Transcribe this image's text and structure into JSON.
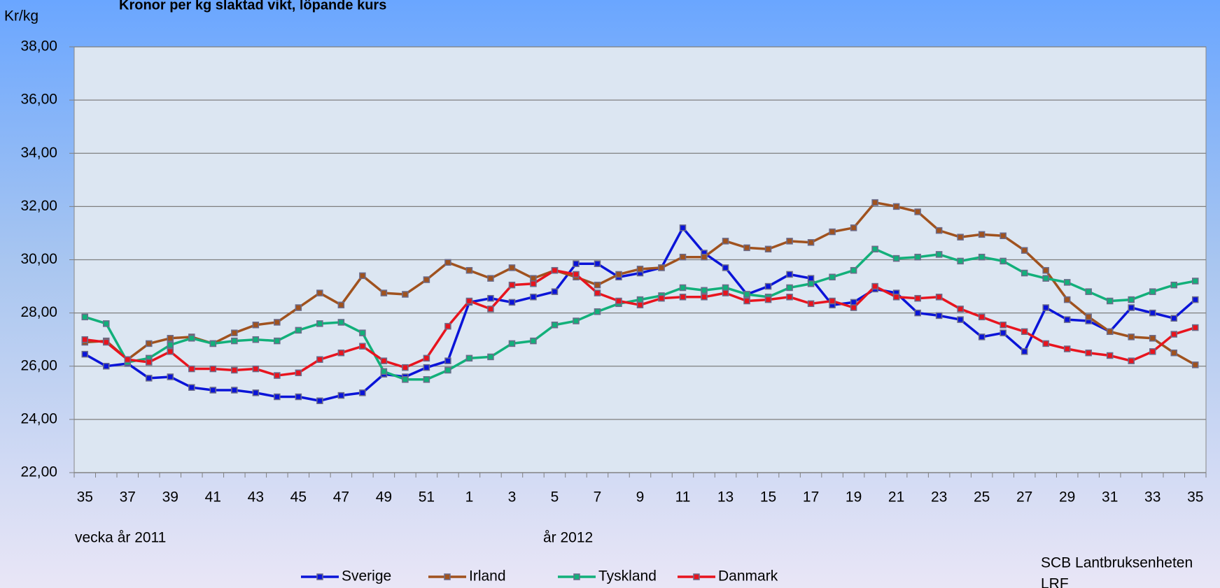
{
  "chart_data": {
    "type": "line",
    "title": "Kronor per kg  slaktad vikt,  löpande kurs",
    "y_label": "Kr/kg",
    "annotations": [
      "vecka  år 2011",
      "år 2012",
      "SCB  Lantbruksenheten",
      "LRF"
    ],
    "categories": [
      "35",
      null,
      "37",
      null,
      "39",
      null,
      "41",
      null,
      "43",
      null,
      "45",
      null,
      "47",
      null,
      "49",
      null,
      "51",
      null,
      "1",
      null,
      "3",
      null,
      "5",
      null,
      "7",
      null,
      "9",
      null,
      "11",
      null,
      "13",
      null,
      "15",
      null,
      "17",
      null,
      "19",
      null,
      "21",
      null,
      "23",
      null,
      "25",
      null,
      "27",
      null,
      "29",
      null,
      "31",
      null,
      "33",
      null,
      "35"
    ],
    "ylim": [
      22,
      38
    ],
    "yticks": [
      {
        "value": 22,
        "label": "22,00"
      },
      {
        "value": 24,
        "label": "24,00"
      },
      {
        "value": 26,
        "label": "26,00"
      },
      {
        "value": 28,
        "label": "28,00"
      },
      {
        "value": 30,
        "label": "30,00"
      },
      {
        "value": 32,
        "label": "32,00"
      },
      {
        "value": 34,
        "label": "34,00"
      },
      {
        "value": 36,
        "label": "36,00"
      },
      {
        "value": 38,
        "label": "38,00"
      }
    ],
    "grid": true,
    "legend": "bottom",
    "series": [
      {
        "name": "Sverige",
        "color": "#0a14d8",
        "values": [
          26.45,
          26.0,
          26.1,
          25.55,
          25.6,
          25.2,
          25.1,
          25.1,
          25.0,
          24.85,
          24.85,
          24.7,
          24.9,
          25.0,
          25.7,
          25.6,
          25.95,
          26.2,
          28.4,
          28.55,
          28.4,
          28.6,
          28.8,
          29.85,
          29.85,
          29.35,
          29.5,
          29.7,
          31.2,
          30.25,
          29.7,
          28.7,
          29.0,
          29.45,
          29.3,
          28.3,
          28.4,
          28.9,
          28.75,
          28.0,
          27.9,
          27.75,
          27.1,
          27.25,
          26.55,
          28.2,
          27.75,
          27.7,
          27.3,
          28.2,
          28.0,
          27.8,
          28.5
        ]
      },
      {
        "name": "Irland",
        "color": "#a0521e",
        "values": [
          26.9,
          26.95,
          26.25,
          26.85,
          27.05,
          27.1,
          26.85,
          27.25,
          27.55,
          27.65,
          28.2,
          28.75,
          28.3,
          29.4,
          28.75,
          28.7,
          29.25,
          29.9,
          29.6,
          29.3,
          29.7,
          29.3,
          29.6,
          29.35,
          29.05,
          29.45,
          29.65,
          29.7,
          30.1,
          30.1,
          30.7,
          30.45,
          30.4,
          30.7,
          30.65,
          31.05,
          31.2,
          32.15,
          32.0,
          31.8,
          31.1,
          30.85,
          30.95,
          30.9,
          30.35,
          29.6,
          28.5,
          27.85,
          27.3,
          27.1,
          27.05,
          26.5,
          26.05
        ]
      },
      {
        "name": "Tyskland",
        "color": "#12b07a",
        "values": [
          27.85,
          27.6,
          26.15,
          26.3,
          26.8,
          27.05,
          26.85,
          26.95,
          27.0,
          26.95,
          27.35,
          27.6,
          27.65,
          27.25,
          25.8,
          25.5,
          25.5,
          25.85,
          26.3,
          26.35,
          26.85,
          26.95,
          27.55,
          27.7,
          28.05,
          28.35,
          28.5,
          28.65,
          28.95,
          28.85,
          28.95,
          28.7,
          28.6,
          28.95,
          29.1,
          29.35,
          29.6,
          30.4,
          30.05,
          30.1,
          30.2,
          29.95,
          30.1,
          29.95,
          29.5,
          29.3,
          29.15,
          28.8,
          28.45,
          28.5,
          28.8,
          29.05,
          29.2
        ]
      },
      {
        "name": "Danmark",
        "color": "#e8141e",
        "values": [
          27.0,
          26.9,
          26.25,
          26.15,
          26.55,
          25.9,
          25.9,
          25.85,
          25.9,
          25.65,
          25.75,
          26.25,
          26.5,
          26.75,
          26.2,
          25.95,
          26.3,
          27.5,
          28.45,
          28.15,
          29.05,
          29.1,
          29.6,
          29.45,
          28.75,
          28.45,
          28.3,
          28.55,
          28.6,
          28.6,
          28.75,
          28.45,
          28.5,
          28.6,
          28.35,
          28.45,
          28.2,
          29.0,
          28.6,
          28.55,
          28.6,
          28.15,
          27.85,
          27.55,
          27.3,
          26.85,
          26.65,
          26.5,
          26.4,
          26.2,
          26.55,
          27.2,
          27.45
        ]
      }
    ]
  }
}
